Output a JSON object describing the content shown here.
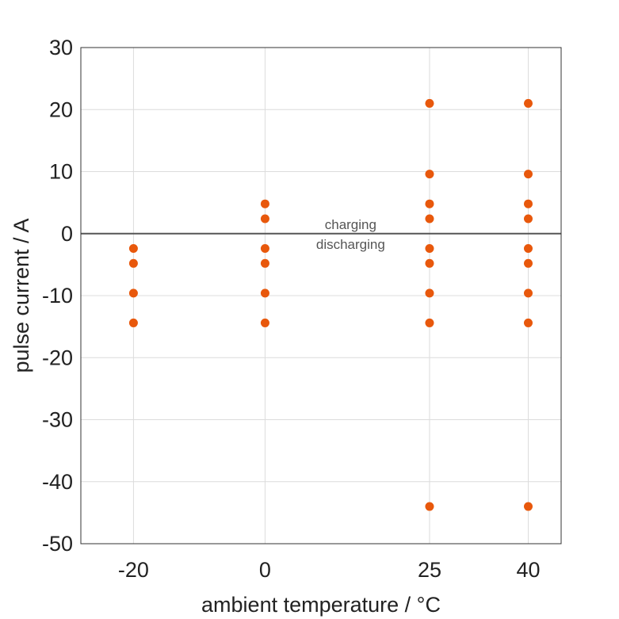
{
  "chart_data": {
    "type": "scatter",
    "title": "",
    "xlabel": "ambient temperature / °C",
    "ylabel": "pulse current / A",
    "xlim": [
      -28,
      45
    ],
    "ylim": [
      -50,
      30
    ],
    "xticks": [
      -20,
      0,
      25,
      40
    ],
    "xtick_labels": [
      "-20",
      "0",
      "25",
      "40"
    ],
    "yticks": [
      30,
      20,
      10,
      0,
      -10,
      -20,
      -30,
      -40,
      -50
    ],
    "ytick_labels": [
      "30",
      "20",
      "10",
      "0",
      "-10",
      "-20",
      "-30",
      "-40",
      "-50"
    ],
    "grid": true,
    "legend": "none",
    "marker_color": "#e8580c",
    "zero_line": {
      "y": 0,
      "label_above": "charging",
      "label_below": "discharging",
      "label_x": 13
    },
    "points": [
      {
        "x": -20,
        "y": -2.4
      },
      {
        "x": -20,
        "y": -4.8
      },
      {
        "x": -20,
        "y": -9.6
      },
      {
        "x": -20,
        "y": -14.4
      },
      {
        "x": 0,
        "y": 4.8
      },
      {
        "x": 0,
        "y": 2.4
      },
      {
        "x": 0,
        "y": -2.4
      },
      {
        "x": 0,
        "y": -4.8
      },
      {
        "x": 0,
        "y": -9.6
      },
      {
        "x": 0,
        "y": -14.4
      },
      {
        "x": 25,
        "y": 21
      },
      {
        "x": 25,
        "y": 9.6
      },
      {
        "x": 25,
        "y": 4.8
      },
      {
        "x": 25,
        "y": 2.4
      },
      {
        "x": 25,
        "y": -2.4
      },
      {
        "x": 25,
        "y": -4.8
      },
      {
        "x": 25,
        "y": -9.6
      },
      {
        "x": 25,
        "y": -14.4
      },
      {
        "x": 25,
        "y": -44
      },
      {
        "x": 40,
        "y": 21
      },
      {
        "x": 40,
        "y": 9.6
      },
      {
        "x": 40,
        "y": 4.8
      },
      {
        "x": 40,
        "y": 2.4
      },
      {
        "x": 40,
        "y": -2.4
      },
      {
        "x": 40,
        "y": -4.8
      },
      {
        "x": 40,
        "y": -9.6
      },
      {
        "x": 40,
        "y": -14.4
      },
      {
        "x": 40,
        "y": -44
      }
    ]
  }
}
